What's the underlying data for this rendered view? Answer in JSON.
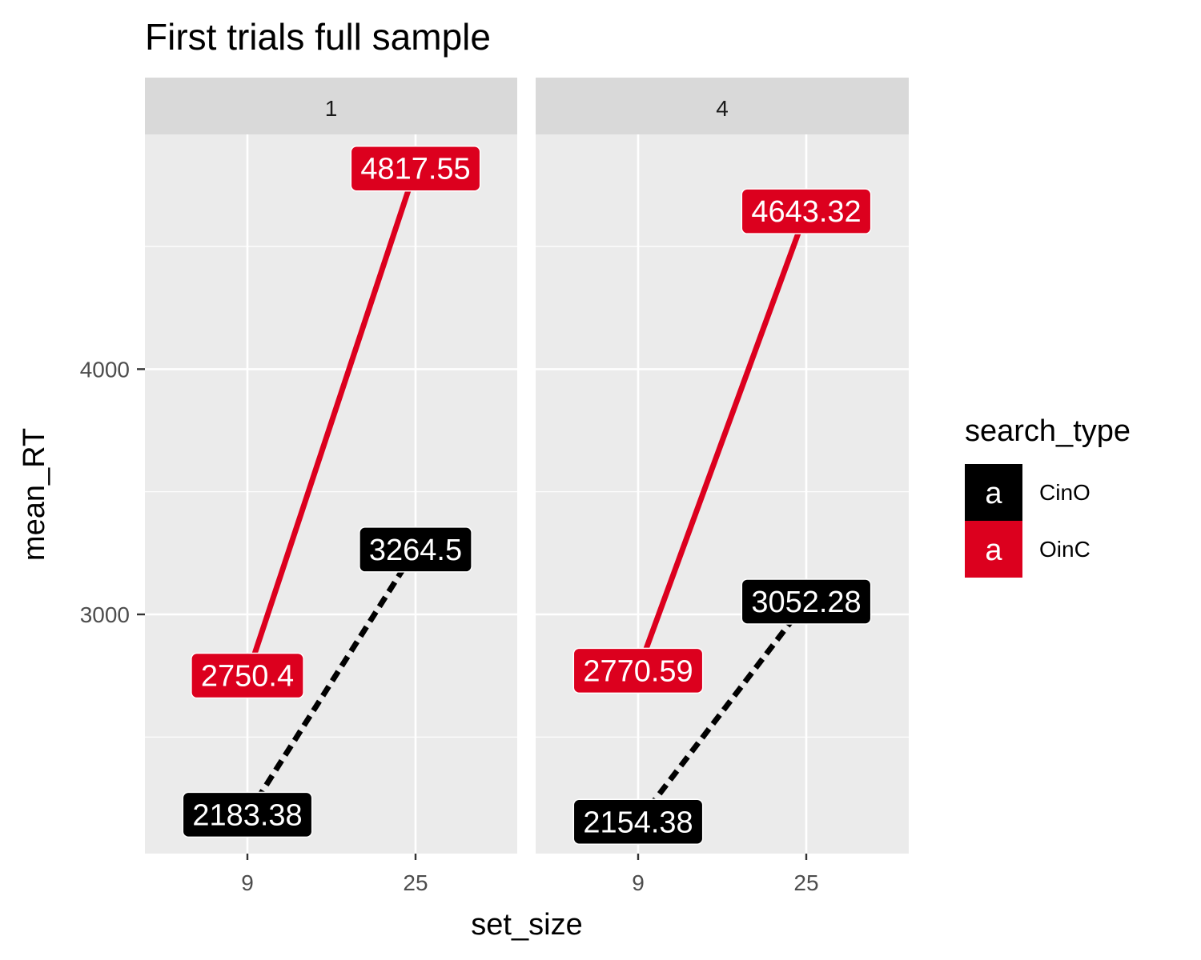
{
  "chart_data": {
    "type": "line",
    "title": "First trials full sample",
    "xlabel": "set_size",
    "ylabel": "mean_RT",
    "x_categories": [
      "9",
      "25"
    ],
    "y_ticks": [
      3000,
      4000
    ],
    "ylim": [
      2090,
      5000
    ],
    "grid": true,
    "legend": {
      "title": "search_type",
      "position": "right",
      "key_glyph": "a",
      "entries": [
        {
          "name": "CinO",
          "color": "#000000"
        },
        {
          "name": "OinC",
          "color": "#dc001e"
        }
      ]
    },
    "facets": [
      {
        "label": "1",
        "series": [
          {
            "name": "CinO",
            "color": "#000000",
            "linetype": "dashed",
            "values": [
              2183.38,
              3264.5
            ],
            "labels": [
              "2183.38",
              "3264.5"
            ]
          },
          {
            "name": "OinC",
            "color": "#dc001e",
            "linetype": "solid",
            "values": [
              2750.4,
              4817.55
            ],
            "labels": [
              "2750.4",
              "4817.55"
            ]
          }
        ]
      },
      {
        "label": "4",
        "series": [
          {
            "name": "CinO",
            "color": "#000000",
            "linetype": "dashed",
            "values": [
              2154.38,
              3052.28
            ],
            "labels": [
              "2154.38",
              "3052.28"
            ]
          },
          {
            "name": "OinC",
            "color": "#dc001e",
            "linetype": "solid",
            "values": [
              2770.59,
              4643.32
            ],
            "labels": [
              "2770.59",
              "4643.32"
            ]
          }
        ]
      }
    ]
  }
}
